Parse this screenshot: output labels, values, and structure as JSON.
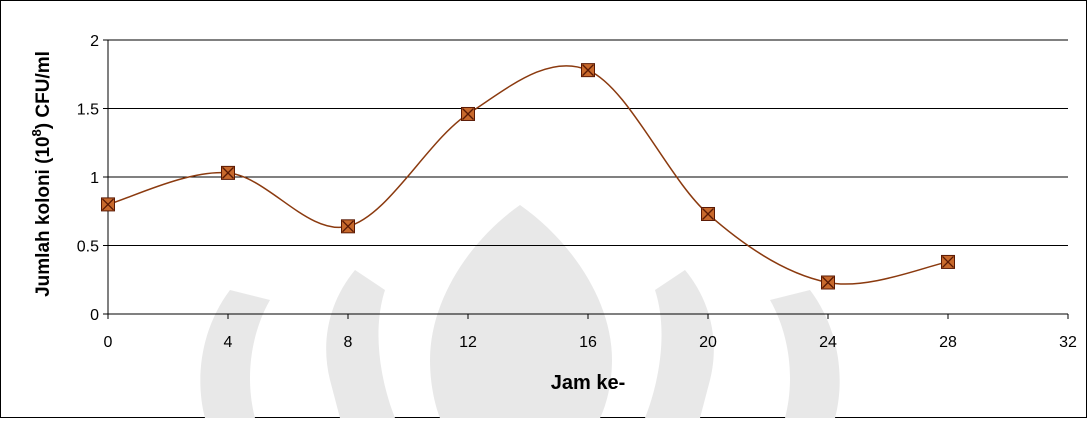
{
  "chart_data": {
    "type": "line",
    "title": "",
    "xlabel": "Jam ke-",
    "ylabel": {
      "prefix": "Jumlah koloni (10",
      "superscript": "8",
      "suffix": ") CFU/ml"
    },
    "xlim": [
      0,
      32
    ],
    "ylim": [
      0,
      2
    ],
    "x_ticks": [
      0,
      4,
      8,
      12,
      16,
      20,
      24,
      28,
      32
    ],
    "y_ticks": [
      0,
      0.5,
      1,
      1.5,
      2
    ],
    "x_tick_labels": [
      "0",
      "4",
      "8",
      "12",
      "16",
      "20",
      "24",
      "28",
      "32"
    ],
    "y_tick_labels": [
      "0",
      "0.5",
      "1",
      "1.5",
      "2"
    ],
    "grid": "horizontal",
    "legend": "none",
    "smooth": true,
    "series": [
      {
        "x": [
          0,
          4,
          8,
          12,
          16,
          20,
          24,
          28
        ],
        "y": [
          0.8,
          1.03,
          0.64,
          1.46,
          1.78,
          0.73,
          0.23,
          0.38
        ]
      }
    ],
    "colors": {
      "line": "#8b3a0f",
      "marker_fill": "#c8692c",
      "marker_cross": "#5a1a05",
      "grid": "#000000",
      "watermark": "#e8e8e8"
    }
  }
}
